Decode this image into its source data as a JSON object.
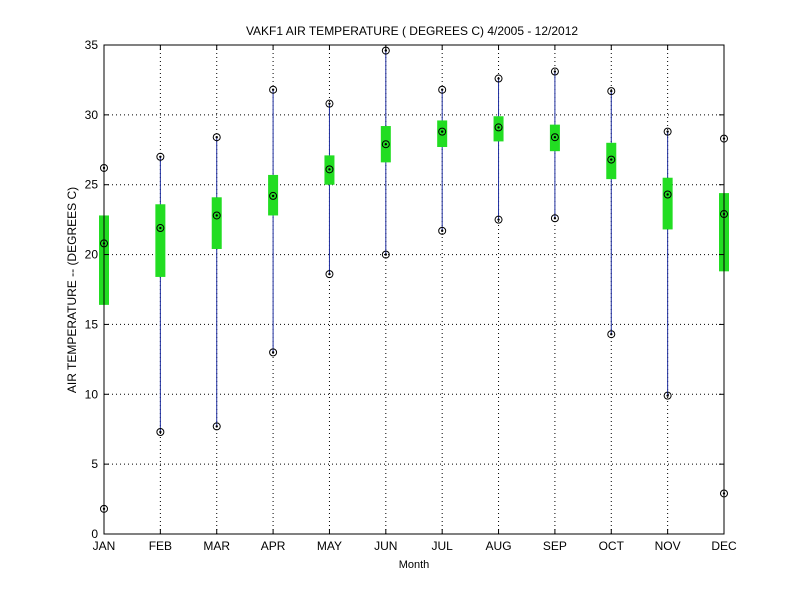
{
  "chart_data": {
    "type": "boxplot",
    "title": "VAKF1  AIR TEMPERATURE ( DEGREES C) 4/2005 - 12/2012",
    "xlabel": "Month",
    "ylabel": "AIR TEMPERATURE -- (DEGREES C)",
    "ylim": [
      0,
      35
    ],
    "yticks": [
      0,
      5,
      10,
      15,
      20,
      25,
      30,
      35
    ],
    "grid": true,
    "categories": [
      "JAN",
      "FEB",
      "MAR",
      "APR",
      "MAY",
      "JUN",
      "JUL",
      "AUG",
      "SEP",
      "OCT",
      "NOV",
      "DEC"
    ],
    "min": [
      1.8,
      7.3,
      7.7,
      13.0,
      18.6,
      20.0,
      21.7,
      22.5,
      22.6,
      14.3,
      9.9,
      2.9
    ],
    "q1": [
      16.4,
      18.4,
      20.4,
      22.8,
      25.0,
      26.6,
      27.7,
      28.1,
      27.4,
      25.4,
      21.8,
      18.8
    ],
    "median": [
      20.8,
      21.9,
      22.8,
      24.2,
      26.1,
      27.9,
      28.8,
      29.1,
      28.4,
      26.8,
      24.3,
      22.9
    ],
    "q3": [
      22.8,
      23.6,
      24.1,
      25.7,
      27.1,
      29.2,
      29.6,
      29.9,
      29.3,
      28.0,
      25.5,
      24.4
    ],
    "max": [
      26.2,
      27.0,
      28.4,
      31.8,
      30.8,
      34.6,
      31.8,
      32.6,
      33.1,
      31.7,
      28.8,
      28.3
    ],
    "colors": {
      "whisker": "#1f2fa0",
      "box": "#22dd22",
      "marker": "#000000",
      "grid": "#000000"
    }
  }
}
